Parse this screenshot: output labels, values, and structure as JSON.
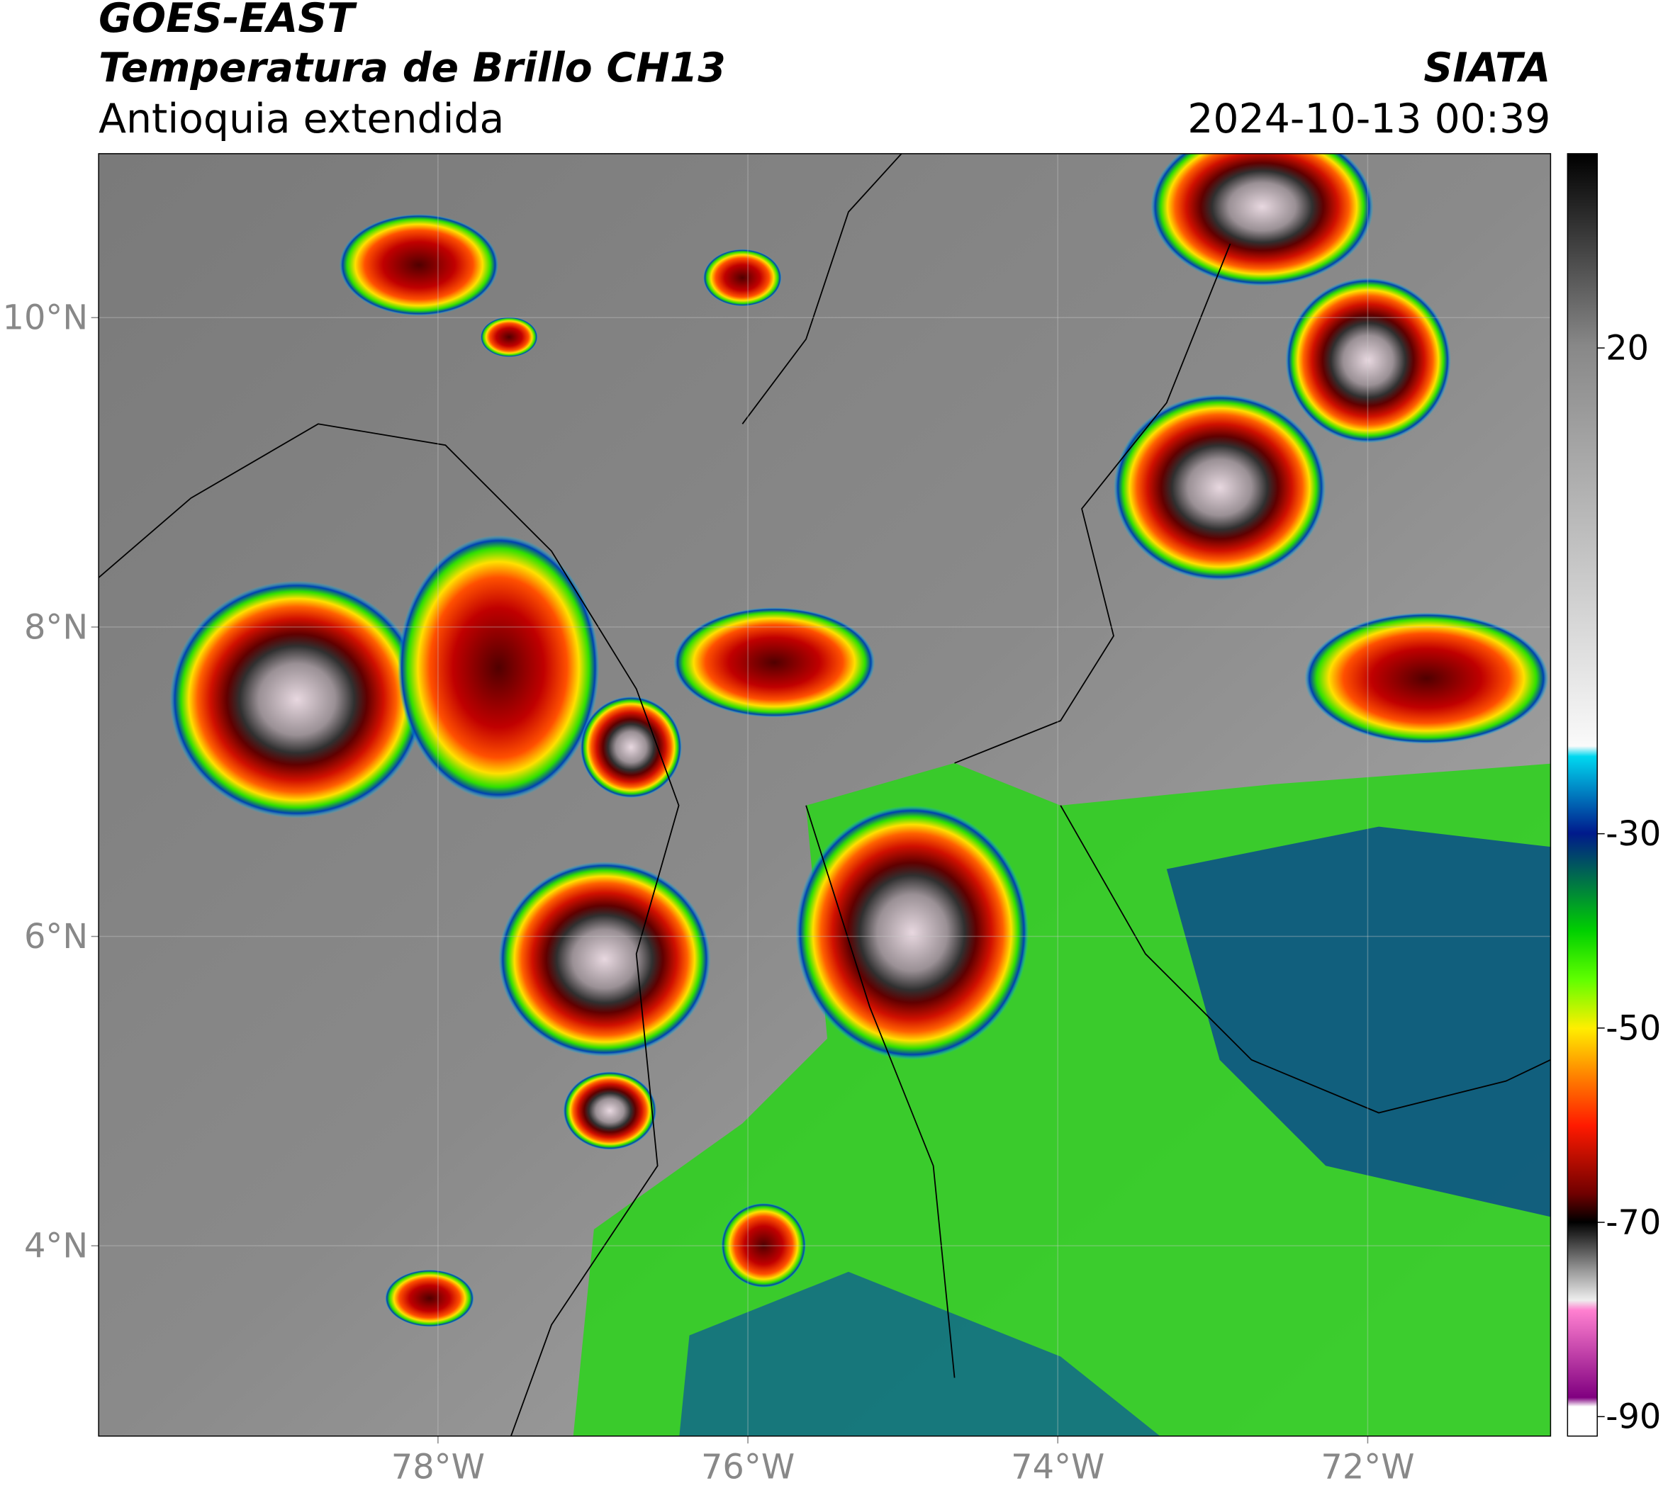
{
  "header": {
    "title": "GOES-EAST",
    "subtitle": "Temperatura de Brillo CH13",
    "region": "Antioquia extendida",
    "source": "SIATA",
    "datetime": "2024-10-13 00:39"
  },
  "map": {
    "xlim": [
      -80.19,
      -70.82
    ],
    "ylim": [
      2.77,
      11.06
    ],
    "xticks": [
      {
        "value": -78,
        "label": "78°W"
      },
      {
        "value": -76,
        "label": "76°W"
      },
      {
        "value": -74,
        "label": "74°W"
      },
      {
        "value": -72,
        "label": "72°W"
      }
    ],
    "yticks": [
      {
        "value": 4,
        "label": "4°N"
      },
      {
        "value": 6,
        "label": "6°N"
      },
      {
        "value": 8,
        "label": "8°N"
      },
      {
        "value": 10,
        "label": "10°N"
      }
    ]
  },
  "colorbar": {
    "lim": [
      -92,
      40
    ],
    "ticks": [
      20,
      -30,
      -50,
      -70,
      -90
    ]
  }
}
